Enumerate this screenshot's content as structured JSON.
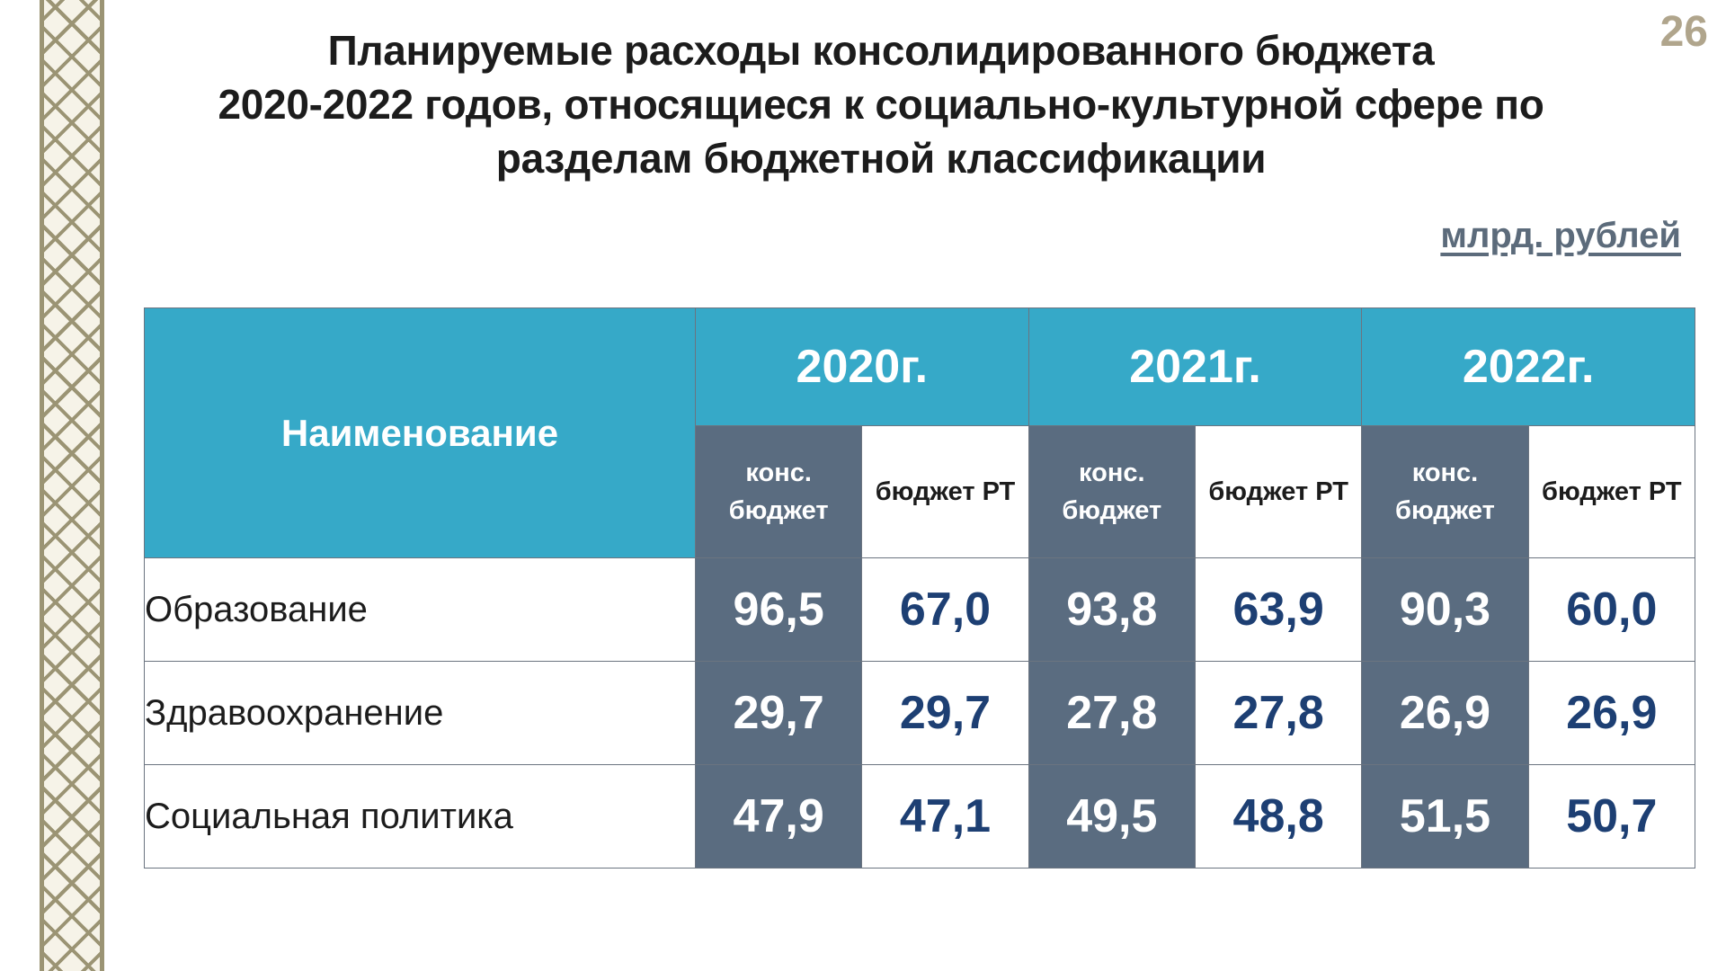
{
  "page_number": "26",
  "title_lines": [
    "Планируемые расходы консолидированного бюджета",
    "2020-2022 годов, относящиеся к социально-культурной сфере по",
    "разделам бюджетной классификации"
  ],
  "units": "млрд. рублей",
  "table": {
    "name_header": "Наименование",
    "years": [
      "2020г.",
      "2021г.",
      "2022г."
    ],
    "sub_headers": {
      "kons": "конс. бюджет",
      "rt": "бюджет РТ"
    },
    "rows": [
      {
        "name": "Образование",
        "values": [
          "96,5",
          "67,0",
          "93,8",
          "63,9",
          "90,3",
          "60,0"
        ]
      },
      {
        "name": "Здравоохранение",
        "values": [
          "29,7",
          "29,7",
          "27,8",
          "27,8",
          "26,9",
          "26,9"
        ]
      },
      {
        "name": "Социальная политика",
        "values": [
          "47,9",
          "47,1",
          "49,5",
          "48,8",
          "51,5",
          "50,7"
        ]
      }
    ]
  },
  "colors": {
    "header_teal": "#36a9c8",
    "kons_column": "#5a6c80",
    "rt_value_text": "#1d3f73",
    "page_number": "#b0a58c",
    "units_text": "#5c6b7b",
    "ornament": "#9b9474"
  }
}
